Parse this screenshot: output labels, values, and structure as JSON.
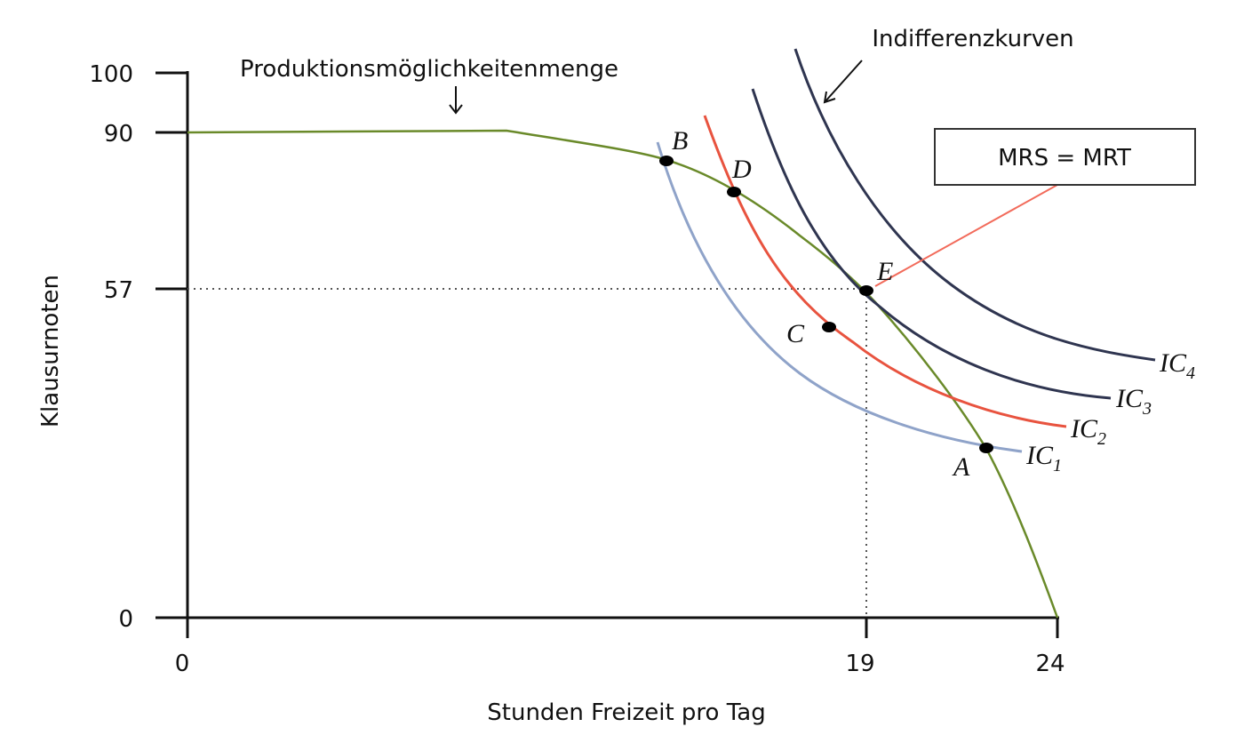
{
  "axes": {
    "y_label": "Klausurnoten",
    "x_label": "Stunden Freizeit pro Tag",
    "y_ticks": [
      "100",
      "90",
      "57",
      "0"
    ],
    "x_ticks": [
      "0",
      "19",
      "24"
    ]
  },
  "annotations": {
    "ppf": "Produktionsmöglichkeitenmenge",
    "indifference": "Indifferenzkurven",
    "box": "MRS = MRT"
  },
  "points": [
    "B",
    "D",
    "E",
    "C",
    "A"
  ],
  "curves": [
    {
      "label": "IC",
      "sub": "1"
    },
    {
      "label": "IC",
      "sub": "2"
    },
    {
      "label": "IC",
      "sub": "3"
    },
    {
      "label": "IC",
      "sub": "4"
    }
  ]
}
